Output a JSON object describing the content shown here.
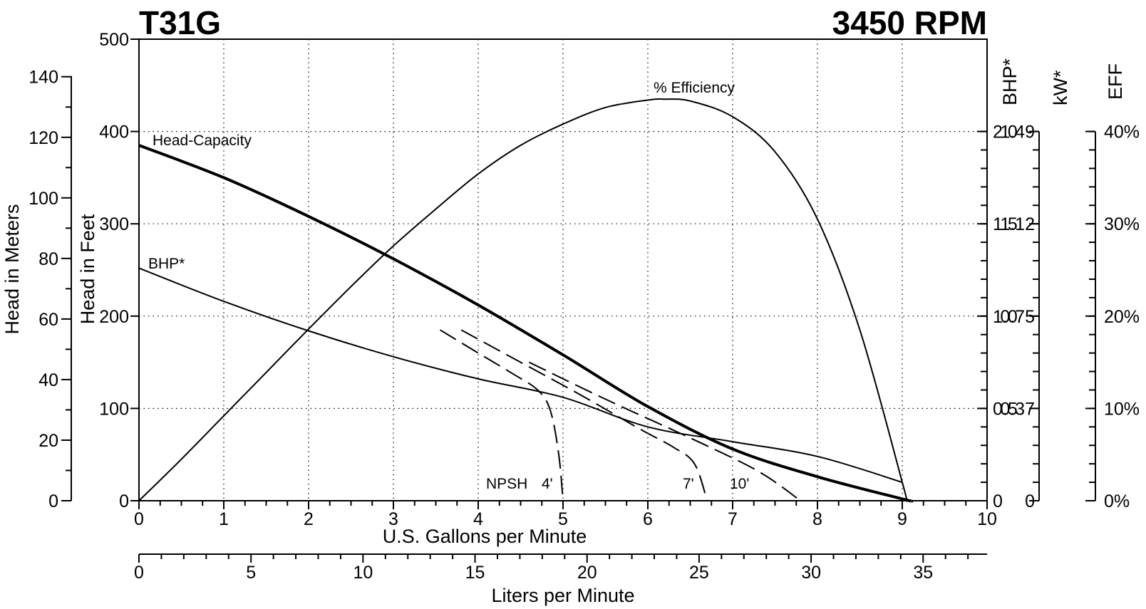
{
  "chart_data": {
    "type": "line",
    "title_left": "T31G",
    "title_right": "3450 RPM",
    "xlabel": "U.S. Gallons per Minute",
    "x2label": "Liters per Minute",
    "ylabel": "Head in Feet",
    "y2label": "Head in Meters",
    "right_axis_titles": [
      "BHP*",
      "kW*",
      "EFF"
    ],
    "xlim": [
      0,
      10
    ],
    "ylim": [
      0,
      500
    ],
    "x_ticks": [
      0,
      1,
      2,
      3,
      4,
      5,
      6,
      7,
      8,
      9,
      10
    ],
    "y_ticks": [
      0,
      100,
      200,
      300,
      400,
      500
    ],
    "meters_ticks": [
      0,
      20,
      40,
      60,
      80,
      100,
      120,
      140
    ],
    "lpm_ticks": [
      0,
      5,
      10,
      15,
      20,
      25,
      30,
      35
    ],
    "bhp_ticks": [
      {
        "label": "0",
        "value": 0
      },
      {
        "label": "0.5",
        "value": 0.5
      },
      {
        "label": "1.0",
        "value": 1.0
      },
      {
        "label": "1.5",
        "value": 1.5
      },
      {
        "label": "2.0",
        "value": 2.0
      }
    ],
    "kw_ticks": [
      {
        "label": "0",
        "value": 0
      },
      {
        "label": "0.37",
        "value": 0.5
      },
      {
        "label": "0.75",
        "value": 1.0
      },
      {
        "label": "1.12",
        "value": 1.5
      },
      {
        "label": "1.49",
        "value": 2.0
      }
    ],
    "eff_ticks": [
      {
        "label": "0%",
        "value": 0
      },
      {
        "label": "10%",
        "value": 10
      },
      {
        "label": "20%",
        "value": 20
      },
      {
        "label": "30%",
        "value": 30
      },
      {
        "label": "40%",
        "value": 40
      }
    ],
    "grid": true,
    "series": [
      {
        "name": "Head-Capacity",
        "axis": "feet",
        "x": [
          0,
          1,
          2,
          3,
          4,
          5,
          6,
          7,
          8,
          9,
          9.1
        ],
        "y": [
          385,
          350,
          308,
          262,
          212,
          158,
          102,
          56,
          26,
          2,
          0
        ]
      },
      {
        "name": "% Efficiency",
        "axis": "eff",
        "x": [
          0,
          0.5,
          1,
          1.5,
          2,
          2.5,
          3,
          3.5,
          4,
          4.5,
          5,
          5.5,
          6,
          6.2,
          6.5,
          7,
          7.5,
          8,
          8.5,
          9,
          9.05
        ],
        "y": [
          0,
          4.5,
          9.2,
          13.9,
          18.6,
          23.2,
          27.6,
          31.6,
          35.4,
          38.5,
          40.8,
          42.6,
          43.4,
          43.5,
          43.3,
          41.6,
          37.8,
          30.5,
          18.5,
          2,
          0
        ]
      },
      {
        "name": "BHP*",
        "axis": "bhp",
        "x": [
          0,
          1,
          2,
          3,
          4,
          5,
          6,
          7,
          8,
          9
        ],
        "y": [
          1.26,
          1.08,
          0.92,
          0.78,
          0.66,
          0.56,
          0.4,
          0.32,
          0.24,
          0.1
        ]
      }
    ],
    "npsh_curves": [
      {
        "label": "4'",
        "x": [
          3.55,
          4.0,
          4.4,
          4.7,
          4.85,
          4.95,
          5.0
        ],
        "y": [
          185,
          160,
          138,
          120,
          98,
          50,
          0
        ]
      },
      {
        "label": "7'",
        "x": [
          3.8,
          4.5,
          5.2,
          5.9,
          6.3,
          6.55,
          6.7
        ],
        "y": [
          185,
          150,
          115,
          78,
          58,
          40,
          0
        ]
      },
      {
        "label": "10'",
        "x": [
          4.6,
          5.5,
          6.5,
          7.3,
          7.8
        ],
        "y": [
          150,
          110,
          68,
          32,
          0
        ]
      }
    ],
    "annotations": [
      "NPSH"
    ]
  }
}
